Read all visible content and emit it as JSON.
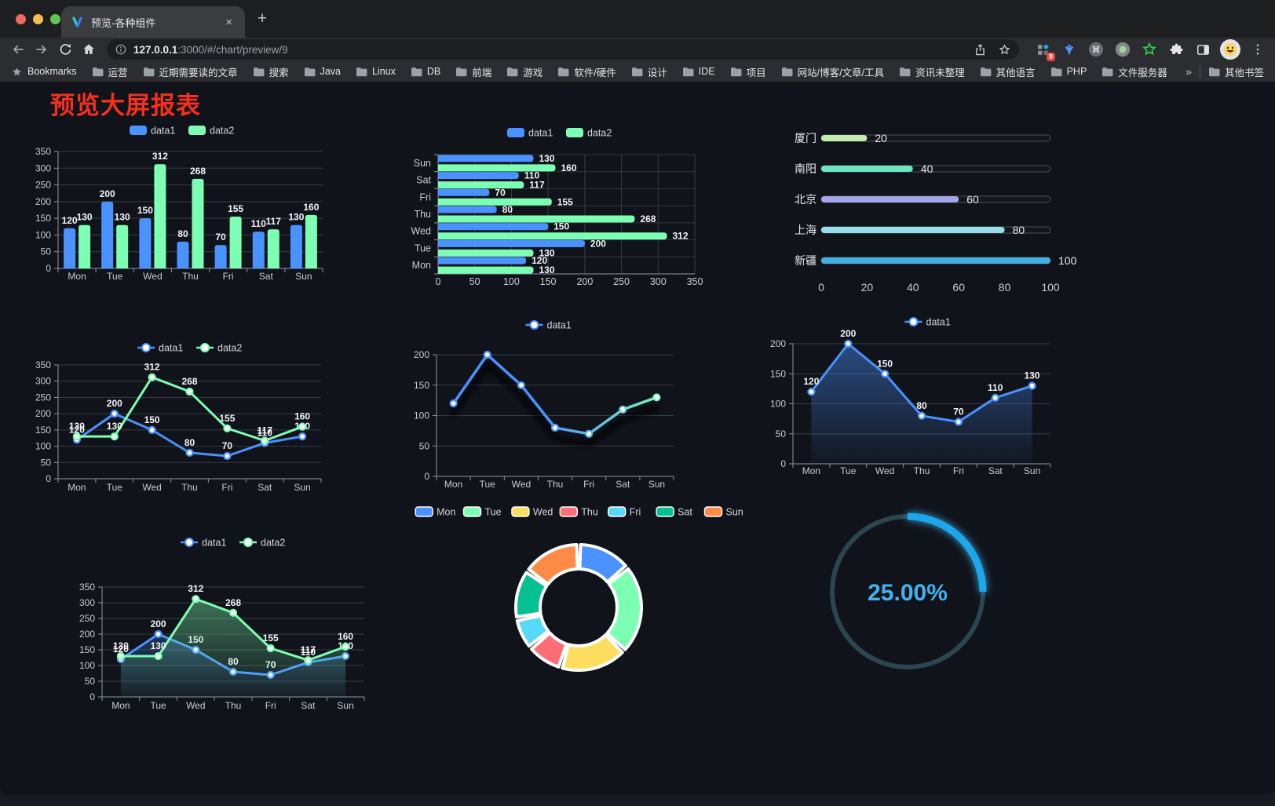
{
  "browser": {
    "tab": {
      "title": "预览-各种组件"
    },
    "url": {
      "host": "127.0.0.1",
      "path": ":3000/#/chart/preview/9"
    },
    "extension_badge": "9",
    "icons": {
      "close": "×",
      "new_tab": "+",
      "overflow": "»",
      "command": "⌘"
    },
    "bookmarks": {
      "label": "Bookmarks",
      "items": [
        "运营",
        "近期需要读的文章",
        "搜索",
        "Java",
        "Linux",
        "DB",
        "前端",
        "游戏",
        "软件/硬件",
        "设计",
        "IDE",
        "项目",
        "网站/博客/文章/工具",
        "资讯未整理",
        "其他语言",
        "PHP",
        "文件服务器"
      ],
      "other_bookmarks": "其他书签"
    }
  },
  "page": {
    "title": "预览大屏报表"
  },
  "chart_data": [
    {
      "id": "bar-grouped",
      "type": "bar",
      "categories": [
        "Mon",
        "Tue",
        "Wed",
        "Thu",
        "Fri",
        "Sat",
        "Sun"
      ],
      "series": [
        {
          "name": "data1",
          "color": "#4992ff",
          "values": [
            120,
            200,
            150,
            80,
            70,
            110,
            130
          ]
        },
        {
          "name": "data2",
          "color": "#7cffb2",
          "values": [
            130,
            130,
            312,
            268,
            155,
            117,
            160
          ]
        }
      ],
      "ylim": [
        0,
        350
      ],
      "ystep": 50,
      "legend_position": "top",
      "grid": true
    },
    {
      "id": "bar-horizontal",
      "type": "horizontal-bar",
      "categories": [
        "Mon",
        "Tue",
        "Wed",
        "Thu",
        "Fri",
        "Sat",
        "Sun"
      ],
      "series": [
        {
          "name": "data1",
          "color": "#4992ff",
          "values": [
            120,
            200,
            150,
            80,
            70,
            110,
            130
          ]
        },
        {
          "name": "data2",
          "color": "#7cffb2",
          "values": [
            130,
            130,
            312,
            268,
            155,
            117,
            160
          ]
        }
      ],
      "xlim": [
        0,
        350
      ],
      "xstep": 50,
      "legend_position": "top",
      "grid": true
    },
    {
      "id": "progress-bars",
      "type": "progress",
      "rows": [
        {
          "label": "厦门",
          "value": 20,
          "color": "#c4ebad"
        },
        {
          "label": "南阳",
          "value": 40,
          "color": "#6be6c1"
        },
        {
          "label": "北京",
          "value": 60,
          "color": "#a0a7e6"
        },
        {
          "label": "上海",
          "value": 80,
          "color": "#96dee8"
        },
        {
          "label": "新疆",
          "value": 100,
          "color": "#3fb1e3"
        }
      ],
      "max": 100,
      "xticks": [
        0,
        20,
        40,
        60,
        80,
        100
      ]
    },
    {
      "id": "line-dual",
      "type": "line",
      "categories": [
        "Mon",
        "Tue",
        "Wed",
        "Thu",
        "Fri",
        "Sat",
        "Sun"
      ],
      "series": [
        {
          "name": "data1",
          "color": "#4992ff",
          "values": [
            120,
            200,
            150,
            80,
            70,
            110,
            130
          ]
        },
        {
          "name": "data2",
          "color": "#7cffb2",
          "values": [
            130,
            130,
            312,
            268,
            155,
            117,
            160
          ]
        }
      ],
      "ylim": [
        0,
        350
      ],
      "ystep": 50,
      "show_labels": true,
      "legend_position": "top"
    },
    {
      "id": "line-gradient",
      "type": "line-gradient",
      "categories": [
        "Mon",
        "Tue",
        "Wed",
        "Thu",
        "Fri",
        "Sat",
        "Sun"
      ],
      "series": [
        {
          "name": "data1",
          "values": [
            120,
            200,
            150,
            80,
            70,
            110,
            130
          ],
          "color_start": "#4992ff",
          "color_end": "#7cffb2"
        }
      ],
      "ylim": [
        0,
        200
      ],
      "ystep": 50,
      "shadow": true,
      "show_labels": false
    },
    {
      "id": "area-single",
      "type": "area",
      "categories": [
        "Mon",
        "Tue",
        "Wed",
        "Thu",
        "Fri",
        "Sat",
        "Sun"
      ],
      "series": [
        {
          "name": "data1",
          "color": "#4992ff",
          "values": [
            120,
            200,
            150,
            80,
            70,
            110,
            130
          ]
        }
      ],
      "ylim": [
        0,
        200
      ],
      "ystep": 50,
      "show_labels": true
    },
    {
      "id": "area-dual",
      "type": "area",
      "categories": [
        "Mon",
        "Tue",
        "Wed",
        "Thu",
        "Fri",
        "Sat",
        "Sun"
      ],
      "series": [
        {
          "name": "data1",
          "color": "#4992ff",
          "values": [
            120,
            200,
            150,
            80,
            70,
            110,
            130
          ]
        },
        {
          "name": "data2",
          "color": "#7cffb2",
          "values": [
            130,
            130,
            312,
            268,
            155,
            117,
            160
          ]
        }
      ],
      "ylim": [
        0,
        350
      ],
      "ystep": 50,
      "show_labels": true
    },
    {
      "id": "donut",
      "type": "pie",
      "donut": true,
      "items": [
        {
          "label": "Mon",
          "value": 120,
          "color": "#4992ff"
        },
        {
          "label": "Tue",
          "value": 200,
          "color": "#7cffb2"
        },
        {
          "label": "Wed",
          "value": 150,
          "color": "#fddd60"
        },
        {
          "label": "Thu",
          "value": 80,
          "color": "#ff6e76"
        },
        {
          "label": "Fri",
          "value": 70,
          "color": "#58d9f9"
        },
        {
          "label": "Sat",
          "value": 110,
          "color": "#05c091"
        },
        {
          "label": "Sun",
          "value": 130,
          "color": "#ff8a45"
        }
      ]
    },
    {
      "id": "gauge",
      "type": "gauge",
      "value": 25,
      "display": "25.00%",
      "color": "#1aa7ec",
      "track_color": "#2b4551"
    }
  ]
}
